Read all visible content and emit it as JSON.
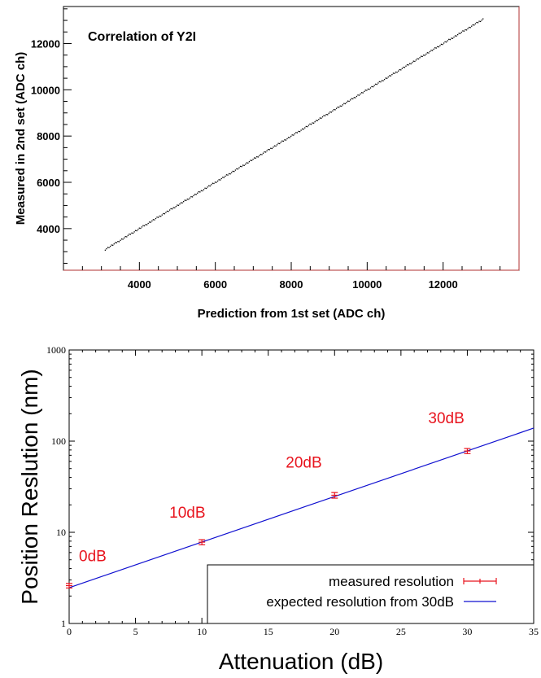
{
  "chart_data": [
    {
      "type": "scatter",
      "title": "Correlation of Y2I",
      "xlabel": "Prediction from 1st set (ADC ch)",
      "ylabel": "Measured in 2nd set (ADC ch)",
      "xlim": [
        2000,
        14000
      ],
      "ylim": [
        2200,
        13600
      ],
      "xticks": [
        "4000",
        "6000",
        "8000",
        "10000",
        "12000"
      ],
      "yticks": [
        "4000",
        "6000",
        "8000",
        "10000",
        "12000"
      ],
      "series": [
        {
          "x_range": [
            3100,
            13050
          ],
          "y_range": [
            3100,
            13050
          ],
          "relation": "y = x"
        }
      ],
      "colors": {
        "points": "#000000",
        "frame": "#b03030"
      }
    },
    {
      "type": "line",
      "xlabel": "Attenuation (dB)",
      "ylabel": "Position Reslution (nm)",
      "xlim": [
        0,
        35
      ],
      "ylim": [
        1,
        1000
      ],
      "yscale": "log",
      "xticks": [
        "0",
        "5",
        "10",
        "15",
        "20",
        "25",
        "30",
        "35"
      ],
      "yticks": [
        "1",
        "10",
        "100",
        "1000"
      ],
      "series": [
        {
          "name": "measured resolution",
          "x": [
            0,
            10,
            20,
            30
          ],
          "y": [
            2.6,
            7.8,
            25.5,
            78
          ],
          "yerr": [
            0.15,
            0.5,
            1.8,
            5
          ],
          "labels": [
            "0dB",
            "10dB",
            "20dB",
            "30dB"
          ],
          "color": "#e8141e"
        },
        {
          "name": "expected resolution from 30dB",
          "x": [
            0,
            35
          ],
          "y": [
            2.47,
            139
          ],
          "color": "#1010d0"
        }
      ],
      "legend_position": "bottom-right"
    }
  ]
}
